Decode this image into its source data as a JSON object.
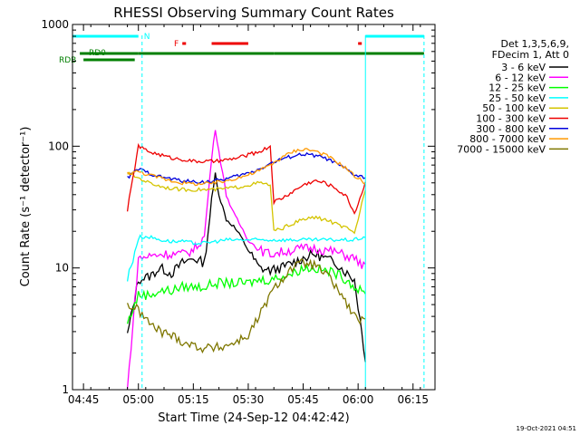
{
  "footer_timestamp": "19-Oct-2021 04:51",
  "colors": {
    "black": "#000000",
    "magenta": "#ff00ff",
    "green": "#00ff00",
    "cyan": "#00ffff",
    "yellow": "#d4c400",
    "red": "#ee0000",
    "blue": "#0000dd",
    "orange": "#ff9900",
    "olive": "#7f7700",
    "darkgreen": "#007f00"
  },
  "chart_data": {
    "type": "line",
    "title": "RHESSI Observing Summary Count Rates",
    "xlabel": "Start Time (24-Sep-12 04:42:42)",
    "ylabel": "Count Rate (s⁻¹ detector⁻¹)",
    "y_scale": "log",
    "ylim": [
      1,
      1000
    ],
    "xlim": [
      "04:42",
      "06:21"
    ],
    "x_ticks": [
      "04:45",
      "05:00",
      "05:15",
      "05:30",
      "05:45",
      "06:00",
      "06:15"
    ],
    "y_ticks": [
      "1",
      "10",
      "100",
      "1000"
    ],
    "legend_header": [
      "Det 1,3,5,6,9,",
      "FDecim 1, Att 0"
    ],
    "legend_position": "right",
    "flags": [
      {
        "label": "N",
        "color": "cyan",
        "spans": [
          [
            "04:42",
            "05:00"
          ],
          [
            "06:02",
            "06:18"
          ]
        ]
      },
      {
        "label": "F",
        "color": "red",
        "spans": [
          [
            "05:12",
            "05:13"
          ],
          [
            "05:20",
            "05:30"
          ],
          [
            "06:00",
            "06:01"
          ]
        ]
      },
      {
        "label": "RD0",
        "color": "darkgreen",
        "spans": [
          [
            "04:44",
            "05:00"
          ],
          [
            "05:00",
            "05:37"
          ],
          [
            "05:37",
            "06:02"
          ],
          [
            "06:02",
            "06:18"
          ]
        ]
      },
      {
        "label": "RDB",
        "color": "darkgreen",
        "spans": [
          [
            "04:45",
            "04:59"
          ]
        ]
      }
    ],
    "night_bounds": [
      "04:42",
      "05:01",
      "06:02",
      "06:18"
    ],
    "series": [
      {
        "name": "3 - 6 keV",
        "color": "black",
        "x": [
          "04:57",
          "05:00",
          "05:03",
          "05:06",
          "05:09",
          "05:12",
          "05:15",
          "05:18",
          "05:20",
          "05:21",
          "05:22",
          "05:24",
          "05:26",
          "05:28",
          "05:30",
          "05:33",
          "05:36",
          "05:39",
          "05:42",
          "05:45",
          "05:48",
          "05:51",
          "05:54",
          "05:57",
          "05:59",
          "06:02"
        ],
        "y": [
          2.8,
          8,
          8.5,
          10,
          9,
          11,
          12,
          11,
          35,
          60,
          40,
          25,
          22,
          18,
          14,
          10,
          9.5,
          10,
          11,
          12,
          13,
          12,
          11,
          9,
          8,
          1.8
        ]
      },
      {
        "name": "6 - 12 keV",
        "color": "magenta",
        "x": [
          "04:57",
          "05:00",
          "05:03",
          "05:06",
          "05:09",
          "05:12",
          "05:15",
          "05:18",
          "05:20",
          "05:21",
          "05:22",
          "05:24",
          "05:26",
          "05:28",
          "05:30",
          "05:33",
          "05:36",
          "05:39",
          "05:42",
          "05:45",
          "05:48",
          "05:51",
          "05:54",
          "05:57",
          "05:59",
          "06:02"
        ],
        "y": [
          1,
          12,
          12.5,
          13,
          13,
          13,
          14,
          18,
          80,
          140,
          90,
          40,
          28,
          22,
          17,
          14,
          13,
          13.5,
          14,
          14.5,
          14.5,
          14,
          13.5,
          12.5,
          12,
          10
        ]
      },
      {
        "name": "12 - 25 keV",
        "color": "green",
        "x": [
          "04:57",
          "05:00",
          "05:03",
          "05:06",
          "05:09",
          "05:12",
          "05:15",
          "05:18",
          "05:21",
          "05:24",
          "05:27",
          "05:30",
          "05:33",
          "05:36",
          "05:39",
          "05:42",
          "05:45",
          "05:48",
          "05:51",
          "05:54",
          "05:57",
          "05:59",
          "06:02"
        ],
        "y": [
          3.5,
          6,
          6,
          6.5,
          6.5,
          7,
          7,
          7,
          7.5,
          7.5,
          7.5,
          7.5,
          8,
          8,
          8.5,
          9,
          10,
          10,
          9.5,
          9,
          8,
          7,
          6
        ]
      },
      {
        "name": "25 - 50 keV",
        "color": "cyan",
        "x": [
          "04:57",
          "05:00",
          "05:03",
          "05:06",
          "05:09",
          "05:12",
          "05:15",
          "05:18",
          "05:21",
          "05:24",
          "05:27",
          "05:30",
          "05:33",
          "05:36",
          "05:39",
          "05:42",
          "05:45",
          "05:48",
          "05:51",
          "05:54",
          "05:57",
          "05:59",
          "06:02"
        ],
        "y": [
          8,
          18,
          18,
          17,
          16.5,
          16.5,
          16,
          16,
          16.5,
          17,
          17,
          17,
          17,
          17,
          17,
          17,
          17,
          17,
          17,
          17,
          17,
          17,
          18
        ]
      },
      {
        "name": "50 - 100 keV",
        "color": "yellow",
        "x": [
          "04:57",
          "05:00",
          "05:03",
          "05:06",
          "05:09",
          "05:12",
          "05:15",
          "05:18",
          "05:21",
          "05:24",
          "05:27",
          "05:30",
          "05:33",
          "05:36",
          "05:37",
          "05:39",
          "05:42",
          "05:45",
          "05:48",
          "05:51",
          "05:54",
          "05:57",
          "05:59",
          "06:02"
        ],
        "y": [
          60,
          55,
          50,
          47,
          45,
          44,
          44,
          44,
          44,
          45,
          46,
          48,
          50,
          48,
          20,
          21,
          23,
          25,
          26,
          25,
          23,
          21,
          19,
          45
        ]
      },
      {
        "name": "100 - 300 keV",
        "color": "red",
        "x": [
          "04:57",
          "05:00",
          "05:03",
          "05:06",
          "05:09",
          "05:12",
          "05:15",
          "05:18",
          "05:21",
          "05:24",
          "05:27",
          "05:30",
          "05:33",
          "05:36",
          "05:37",
          "05:39",
          "05:42",
          "05:45",
          "05:48",
          "05:51",
          "05:54",
          "05:57",
          "05:59",
          "06:02"
        ],
        "y": [
          30,
          100,
          90,
          85,
          80,
          78,
          75,
          75,
          75,
          77,
          80,
          85,
          90,
          100,
          35,
          37,
          42,
          48,
          52,
          50,
          45,
          38,
          28,
          50
        ]
      },
      {
        "name": "300 - 800 keV",
        "color": "blue",
        "x": [
          "04:57",
          "05:00",
          "05:03",
          "05:06",
          "05:09",
          "05:12",
          "05:15",
          "05:18",
          "05:21",
          "05:24",
          "05:27",
          "05:30",
          "05:33",
          "05:36",
          "05:39",
          "05:42",
          "05:45",
          "05:48",
          "05:51",
          "05:54",
          "05:57",
          "05:59",
          "06:02"
        ],
        "y": [
          55,
          65,
          60,
          56,
          54,
          52,
          51,
          51,
          52,
          54,
          57,
          60,
          65,
          72,
          78,
          83,
          86,
          84,
          80,
          72,
          64,
          58,
          55
        ]
      },
      {
        "name": "800 - 7000 keV",
        "color": "orange",
        "x": [
          "04:57",
          "05:00",
          "05:03",
          "05:06",
          "05:09",
          "05:12",
          "05:15",
          "05:18",
          "05:21",
          "05:24",
          "05:27",
          "05:30",
          "05:33",
          "05:36",
          "05:39",
          "05:42",
          "05:45",
          "05:48",
          "05:51",
          "05:54",
          "05:57",
          "05:59",
          "06:02"
        ],
        "y": [
          60,
          62,
          58,
          55,
          52,
          50,
          49,
          49,
          50,
          52,
          55,
          58,
          63,
          70,
          80,
          90,
          95,
          92,
          85,
          75,
          65,
          57,
          50
        ]
      },
      {
        "name": "7000 - 15000 keV",
        "color": "olive",
        "x": [
          "04:57",
          "05:00",
          "05:03",
          "05:06",
          "05:09",
          "05:12",
          "05:15",
          "05:18",
          "05:21",
          "05:24",
          "05:27",
          "05:30",
          "05:33",
          "05:36",
          "05:39",
          "05:42",
          "05:45",
          "05:48",
          "05:51",
          "05:54",
          "05:57",
          "05:59",
          "06:02"
        ],
        "y": [
          5,
          4.5,
          3.5,
          3,
          2.8,
          2.5,
          2.3,
          2.2,
          2.2,
          2.3,
          2.5,
          2.8,
          4,
          6,
          8,
          10,
          11,
          10.5,
          9,
          7,
          5,
          4,
          3.5
        ]
      }
    ]
  }
}
